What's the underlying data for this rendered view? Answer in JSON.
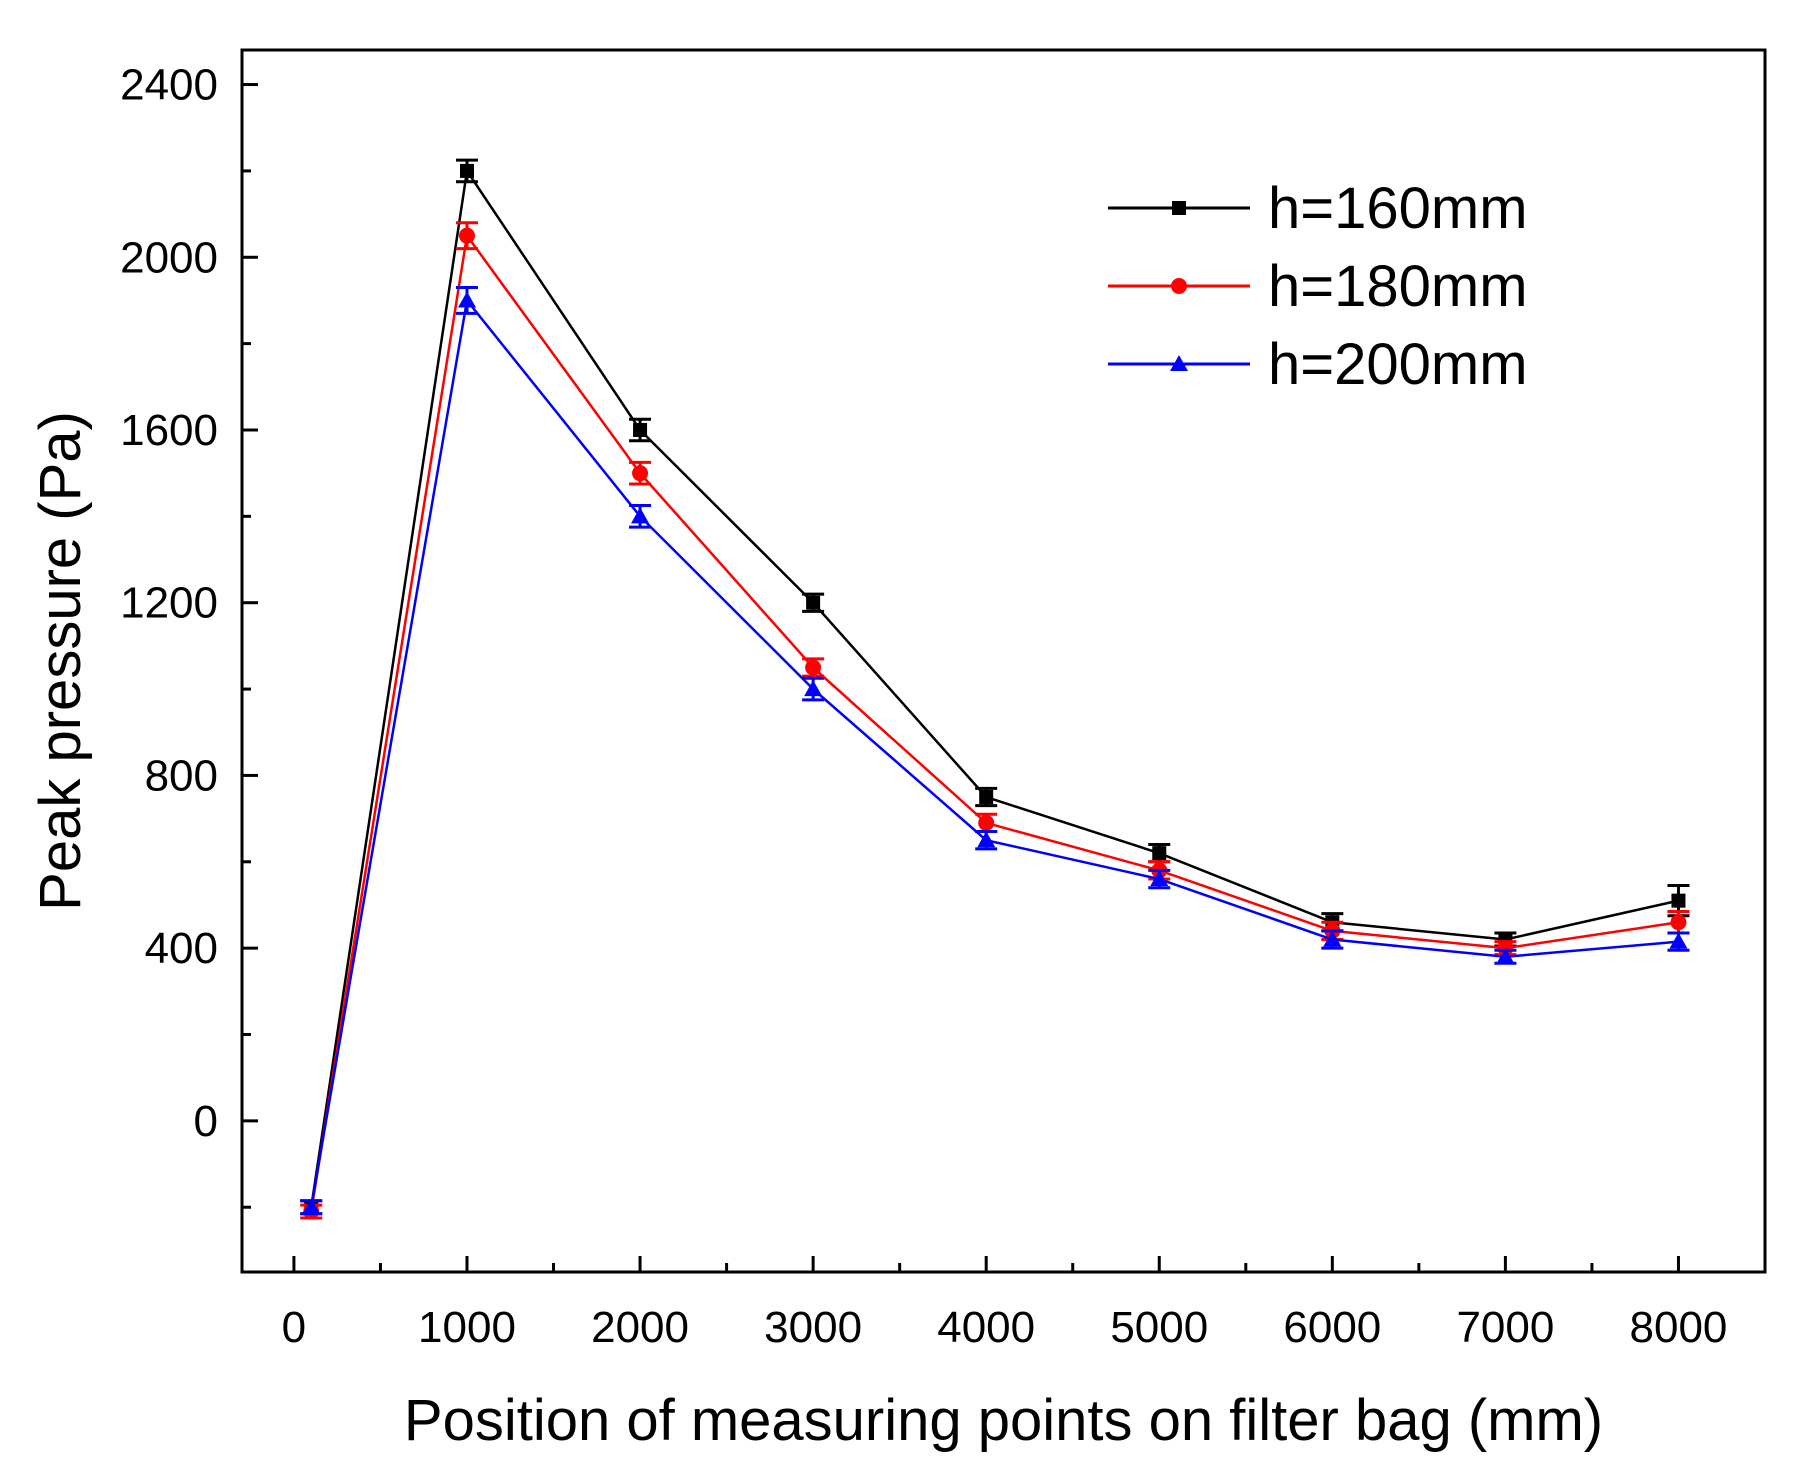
{
  "chart_data": {
    "type": "line",
    "title": "",
    "xlabel": "Position of measuring points on filter bag (mm)",
    "ylabel": "Peak pressure (Pa)",
    "xlim": [
      -300,
      8500
    ],
    "ylim": [
      -350,
      2480
    ],
    "x_ticks": [
      0,
      1000,
      2000,
      3000,
      4000,
      5000,
      6000,
      7000,
      8000
    ],
    "x_tick_labels": [
      "0",
      "1000",
      "2000",
      "3000",
      "4000",
      "5000",
      "6000",
      "7000",
      "8000"
    ],
    "x_minor_ticks": [
      500,
      1500,
      2500,
      3500,
      4500,
      5500,
      6500,
      7500
    ],
    "y_ticks": [
      0,
      400,
      800,
      1200,
      1600,
      2000,
      2400
    ],
    "y_tick_labels": [
      "0",
      "400",
      "800",
      "1200",
      "1600",
      "2000",
      "2400"
    ],
    "y_minor_ticks": [
      -200,
      200,
      600,
      1000,
      1400,
      1800,
      2200
    ],
    "grid": false,
    "legend_position": "top-right",
    "x": [
      100,
      1000,
      2000,
      3000,
      4000,
      5000,
      6000,
      7000,
      8000
    ],
    "series": [
      {
        "name": "h=160mm",
        "color": "#000000",
        "marker": "square",
        "values": [
          -200,
          2200,
          1600,
          1200,
          750,
          620,
          460,
          420,
          510
        ],
        "errors": [
          15,
          25,
          25,
          20,
          20,
          20,
          20,
          15,
          35
        ]
      },
      {
        "name": "h=180mm",
        "color": "#ff0000",
        "marker": "circle",
        "values": [
          -210,
          2050,
          1500,
          1050,
          690,
          580,
          440,
          400,
          460
        ],
        "errors": [
          15,
          30,
          25,
          20,
          20,
          20,
          20,
          15,
          25
        ]
      },
      {
        "name": "h=200mm",
        "color": "#0000ff",
        "marker": "triangle",
        "values": [
          -200,
          1900,
          1400,
          1000,
          650,
          560,
          420,
          380,
          415
        ],
        "errors": [
          15,
          30,
          25,
          25,
          20,
          20,
          20,
          15,
          20
        ]
      }
    ]
  }
}
